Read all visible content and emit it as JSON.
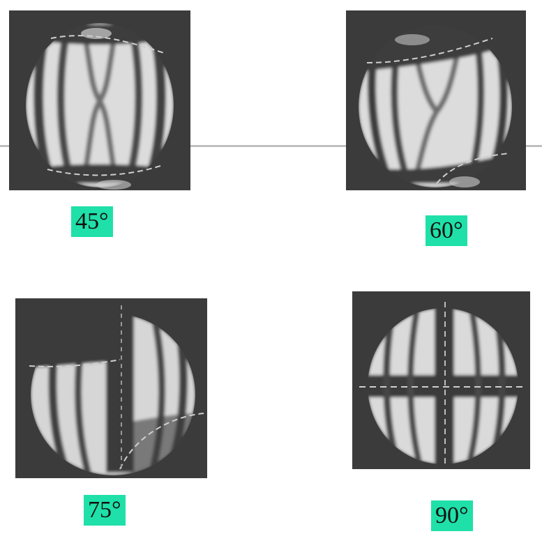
{
  "colors": {
    "label_background": "#1fe0a8",
    "photo_background": "#3a3a3a",
    "fringe_light": "#e6e6e6"
  },
  "panels": [
    {
      "angle_label": "45°"
    },
    {
      "angle_label": "60°"
    },
    {
      "angle_label": "75°"
    },
    {
      "angle_label": "90°"
    }
  ]
}
